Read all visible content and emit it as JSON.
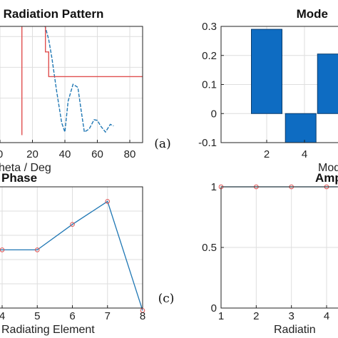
{
  "chart_data": [
    {
      "type": "line",
      "title": "Radiation Pattern",
      "xlabel": "Theta / Deg",
      "ylabel": "",
      "xlim": [
        -20,
        90
      ],
      "x_ticks": [
        0,
        20,
        40,
        60,
        80
      ],
      "y_ticks": [],
      "panel_label": "(a)",
      "grid": true,
      "series": [
        {
          "role": "pattern",
          "color": "#1f77b4",
          "style": "dashed",
          "x": [
            -20,
            -15,
            -10,
            -5,
            0,
            5,
            10,
            15,
            20,
            25,
            28,
            30,
            32,
            35,
            38,
            40,
            42,
            45,
            48,
            50,
            52,
            55,
            58,
            60,
            62,
            65,
            68,
            70
          ],
          "y": [
            1.1,
            1.3,
            1.5,
            1.6,
            1.56,
            1.45,
            1.43,
            1.56,
            1.72,
            1.6,
            1.3,
            0.9,
            0.3,
            -0.8,
            -1.8,
            -2.1,
            -1.1,
            -0.55,
            -0.65,
            -1.4,
            -2.1,
            -2.0,
            -1.7,
            -1.72,
            -1.9,
            -2.1,
            -1.85,
            -1.9
          ]
        },
        {
          "role": "mask",
          "color": "#e05050",
          "style": "solid",
          "x": [
            -20,
            -15,
            -10,
            -5,
            0,
            5,
            10,
            13.5,
            13.5,
            13.5,
            25,
            28,
            28,
            30,
            30,
            90
          ],
          "y": [
            1.5,
            1.4,
            1.52,
            1.66,
            1.62,
            1.5,
            1.44,
            1.45,
            -2.2,
            1.72,
            1.72,
            1.72,
            0.5,
            0.5,
            -0.3,
            -0.3
          ]
        }
      ]
    },
    {
      "type": "bar",
      "title": "Mode",
      "xlabel": "Mode",
      "ylabel": "",
      "ylim": [
        -0.1,
        0.3
      ],
      "y_ticks": [
        -0.1,
        0,
        0.1,
        0.2,
        0.3
      ],
      "x_ticks": [
        2,
        4
      ],
      "categories": [
        2,
        3.8,
        5.5
      ],
      "values": [
        0.29,
        -0.1,
        0.205
      ],
      "color": "#0e6cc2",
      "grid": true
    },
    {
      "type": "line",
      "title": "Phase",
      "xlabel": "Radiating Element",
      "ylabel": "",
      "x_ticks": [
        4,
        5,
        6,
        7,
        8
      ],
      "panel_label": "(c)",
      "grid": true,
      "x": [
        3.7,
        4,
        5,
        6,
        7,
        8
      ],
      "y": [
        0.48,
        0.48,
        0.48,
        0.69,
        0.88,
        -0.02
      ],
      "color": "#1f77b4",
      "marker_color": "#e05050"
    },
    {
      "type": "line",
      "title": "Amp",
      "xlabel": "Radiatin",
      "ylabel": "",
      "ylim": [
        0,
        1
      ],
      "y_ticks": [
        0,
        0.5,
        1
      ],
      "x_ticks": [
        1,
        2,
        3,
        4
      ],
      "grid": true,
      "x": [
        1,
        2,
        3,
        4,
        4.3
      ],
      "y": [
        1,
        1,
        1,
        1,
        1
      ],
      "color": "#1f77b4",
      "marker_color": "#e05050"
    }
  ]
}
